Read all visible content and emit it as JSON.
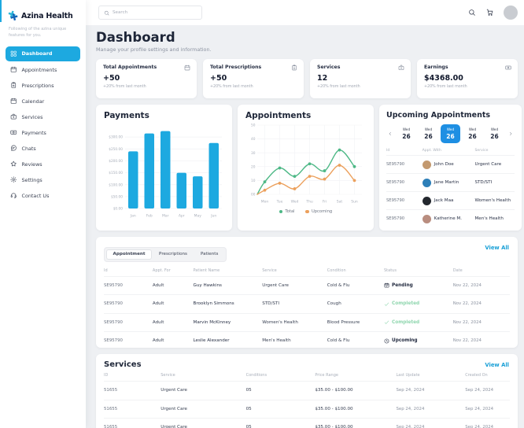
{
  "colors": {
    "accent": "#1da9e0",
    "date_active": "#1e8fe3",
    "link": "#189fd6",
    "bar": "#1da9e0",
    "line_total": "#4db886",
    "line_upcoming": "#eca05c",
    "completed_text": "#8fd6ae",
    "dark_text": "#222a3f"
  },
  "sidebar": {
    "logo_text": "Azina Health",
    "tagline": "Following of the azina unique features for you.",
    "items": [
      {
        "label": "Dashboard",
        "icon": "grid",
        "active": true
      },
      {
        "label": "Appointments",
        "icon": "calendar",
        "active": false
      },
      {
        "label": "Prescriptions",
        "icon": "prescription",
        "active": false
      },
      {
        "label": "Calendar",
        "icon": "calendar",
        "active": false
      },
      {
        "label": "Services",
        "icon": "case",
        "active": false
      },
      {
        "label": "Payments",
        "icon": "banknote",
        "active": false
      },
      {
        "label": "Chats",
        "icon": "chat",
        "active": false
      },
      {
        "label": "Reviews",
        "icon": "star",
        "active": false
      },
      {
        "label": "Settings",
        "icon": "gear",
        "active": false
      },
      {
        "label": "Contact Us",
        "icon": "headset",
        "active": false
      }
    ]
  },
  "topbar": {
    "search_placeholder": "Search",
    "action_icons": [
      "search",
      "cart"
    ]
  },
  "page": {
    "title": "Dashboard",
    "subtitle": "Manage your profile settings and information."
  },
  "stats": [
    {
      "title": "Total Appointments",
      "value": "+50",
      "delta": "+20% from last month",
      "icon": "calendar"
    },
    {
      "title": "Total Prescriptions",
      "value": "+50",
      "delta": "+20% from last month",
      "icon": "prescription"
    },
    {
      "title": "Services",
      "value": "12",
      "delta": "+20% from last month",
      "icon": "case"
    },
    {
      "title": "Earnings",
      "value": "$4368.00",
      "delta": "+20% from last month",
      "icon": "banknote"
    }
  ],
  "chart_data": [
    {
      "type": "bar",
      "title": "Payments",
      "categories": [
        "Jan",
        "Feb",
        "Mar",
        "Apr",
        "May",
        "Jun"
      ],
      "values": [
        240,
        315,
        325,
        150,
        135,
        275
      ],
      "ylabel": "USD",
      "ylim": [
        0,
        350
      ],
      "grid": true,
      "yticks": [
        {
          "v": 0,
          "label": "$0.00"
        },
        {
          "v": 50,
          "label": "$50.00"
        },
        {
          "v": 100,
          "label": "$100.00"
        },
        {
          "v": 150,
          "label": "$150.00"
        },
        {
          "v": 200,
          "label": "$200.00"
        },
        {
          "v": 250,
          "label": "$250.00"
        },
        {
          "v": 300,
          "label": "$300.00"
        }
      ]
    },
    {
      "type": "line",
      "title": "Appointments",
      "categories": [
        "Mon",
        "Tue",
        "Wed",
        "Thu",
        "Fri",
        "Sat",
        "Sun"
      ],
      "ylim": [
        0,
        50
      ],
      "grid": true,
      "legend_position": "bottom",
      "yticks": [
        {
          "v": 0,
          "label": "00"
        },
        {
          "v": 10,
          "label": "10"
        },
        {
          "v": 20,
          "label": "20"
        },
        {
          "v": 30,
          "label": "30"
        },
        {
          "v": 40,
          "label": "40"
        },
        {
          "v": 50,
          "label": "50"
        }
      ],
      "series": [
        {
          "name": "Total",
          "color": "#4db886",
          "starts_at_zero": true,
          "values": [
            9,
            19,
            13,
            22,
            17,
            32,
            20
          ]
        },
        {
          "name": "Upcoming",
          "color": "#eca05c",
          "starts_at_zero": true,
          "values": [
            3,
            8,
            4,
            13,
            11,
            21,
            10
          ]
        }
      ]
    }
  ],
  "upcoming": {
    "title": "Upcoming Appointments",
    "dates": [
      {
        "day": "Wed",
        "num": "26",
        "active": false
      },
      {
        "day": "Wed",
        "num": "26",
        "active": false
      },
      {
        "day": "Wed",
        "num": "26",
        "active": true
      },
      {
        "day": "Wed",
        "num": "26",
        "active": false
      },
      {
        "day": "Wed",
        "num": "26",
        "active": false
      }
    ],
    "headers": [
      "Id",
      "Appt. With",
      "Service"
    ],
    "rows": [
      {
        "id": "SE95790",
        "name": "John Doe",
        "service": "Urgent Care",
        "avatar_color": "#c3996f"
      },
      {
        "id": "SE95790",
        "name": "Jane Martin",
        "service": "STD/STI",
        "avatar_color": "#2d7fb8"
      },
      {
        "id": "SE95790",
        "name": "Jack Maa",
        "service": "Women's Health",
        "avatar_color": "#23272e"
      },
      {
        "id": "SE95790",
        "name": "Katherine M.",
        "service": "Men's Health",
        "avatar_color": "#b98d7f"
      }
    ]
  },
  "appointments_table": {
    "tabs": [
      "Appointment",
      "Prescriptions",
      "Patients"
    ],
    "active_tab": "Appointment",
    "view_all": "View All",
    "headers": [
      "Id",
      "Appt. For",
      "Patient Name",
      "Service",
      "Condition",
      "Status",
      "Date"
    ],
    "rows": [
      {
        "id": "SE95790",
        "appt_for": "Adult",
        "patient": "Guy Hawkins",
        "service": "Urgent Care",
        "condition": "Cold & Flu",
        "status": "Pending",
        "status_icon": "calendar-check",
        "date": "Nov 22, 2024"
      },
      {
        "id": "SE95790",
        "appt_for": "Adult",
        "patient": "Brooklyn Simmons",
        "service": "STD/STI",
        "condition": "Cough",
        "status": "Completed",
        "status_icon": "check",
        "date": "Nov 22, 2024"
      },
      {
        "id": "SE95790",
        "appt_for": "Adult",
        "patient": "Marvin McKinney",
        "service": "Women's Health",
        "condition": "Blood Pressure",
        "status": "Completed",
        "status_icon": "check",
        "date": "Nov 22, 2024"
      },
      {
        "id": "SE95790",
        "appt_for": "Adult",
        "patient": "Leslie Alexander",
        "service": "Men's Health",
        "condition": "Cold & Flu",
        "status": "Upcoming",
        "status_icon": "clock",
        "date": "Nov 22, 2024"
      }
    ]
  },
  "services_table": {
    "title": "Services",
    "view_all": "View All",
    "headers": [
      "ID",
      "Service",
      "Conditions",
      "Price Range",
      "Last Update",
      "Created On"
    ],
    "rows": [
      {
        "id": "51655",
        "service": "Urgent Care",
        "conditions": "05",
        "price": "$35.00 - $100.00",
        "last_update": "Sep 24, 2024",
        "created_on": "Sep 24, 2024"
      },
      {
        "id": "51655",
        "service": "Urgent Care",
        "conditions": "05",
        "price": "$35.00 - $100.00",
        "last_update": "Sep 24, 2024",
        "created_on": "Sep 24, 2024"
      },
      {
        "id": "51655",
        "service": "Urgent Care",
        "conditions": "05",
        "price": "$35.00 - $100.00",
        "last_update": "Sep 24, 2024",
        "created_on": "Sep 24, 2024"
      }
    ]
  }
}
